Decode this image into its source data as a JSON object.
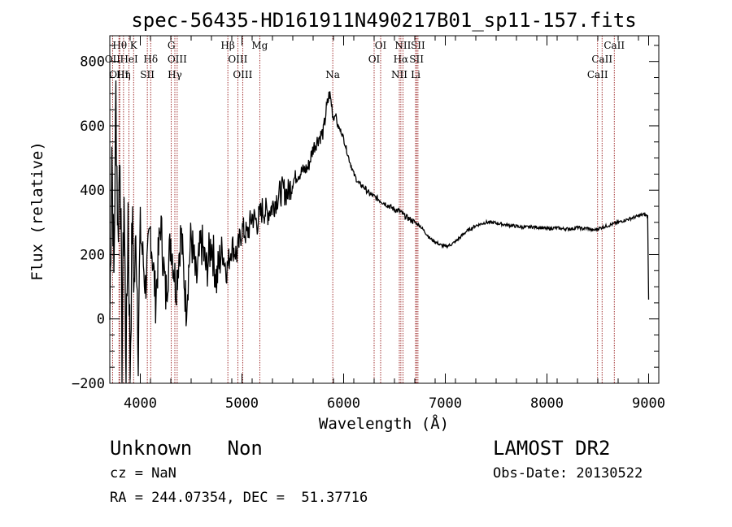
{
  "chart_data": {
    "type": "line",
    "title": "spec-56435-HD161911N490217B01_sp11-157.fits",
    "xlabel": "Wavelength (Å)",
    "ylabel": "Flux (relative)",
    "xlim": [
      3700,
      9100
    ],
    "ylim": [
      -200,
      880
    ],
    "x_ticks": [
      4000,
      5000,
      6000,
      7000,
      8000,
      9000
    ],
    "y_ticks": [
      -200,
      0,
      200,
      400,
      600,
      800
    ],
    "x_tick_labels": [
      "4000",
      "5000",
      "6000",
      "7000",
      "8000",
      "9000"
    ],
    "y_tick_labels": [
      "−200",
      "0",
      "200",
      "400",
      "600",
      "800"
    ],
    "spectrum": {
      "wavelength": [
        3700,
        3720,
        3740,
        3760,
        3780,
        3800,
        3820,
        3840,
        3860,
        3880,
        3900,
        3920,
        3940,
        3960,
        3980,
        4000,
        4050,
        4100,
        4150,
        4200,
        4250,
        4300,
        4350,
        4400,
        4450,
        4500,
        4550,
        4600,
        4650,
        4700,
        4750,
        4800,
        4850,
        4900,
        4950,
        5000,
        5050,
        5100,
        5150,
        5200,
        5250,
        5300,
        5350,
        5400,
        5450,
        5500,
        5550,
        5600,
        5650,
        5700,
        5750,
        5800,
        5830,
        5860,
        5880,
        5900,
        5920,
        5940,
        5960,
        5980,
        6000,
        6050,
        6100,
        6150,
        6200,
        6250,
        6300,
        6350,
        6400,
        6450,
        6500,
        6550,
        6600,
        6650,
        6700,
        6750,
        6800,
        6850,
        6900,
        6950,
        7000,
        7050,
        7100,
        7150,
        7200,
        7250,
        7300,
        7350,
        7400,
        7450,
        7500,
        7550,
        7600,
        7650,
        7700,
        7750,
        7800,
        7850,
        7900,
        7950,
        8000,
        8050,
        8100,
        8150,
        8200,
        8250,
        8300,
        8350,
        8400,
        8450,
        8500,
        8550,
        8600,
        8650,
        8700,
        8750,
        8800,
        8850,
        8900,
        8950,
        8990,
        9000
      ],
      "flux": [
        0,
        550,
        120,
        700,
        250,
        560,
        -100,
        400,
        -180,
        350,
        -150,
        300,
        100,
        260,
        -60,
        280,
        100,
        280,
        60,
        300,
        70,
        250,
        100,
        270,
        40,
        260,
        110,
        240,
        150,
        240,
        120,
        220,
        150,
        230,
        200,
        280,
        260,
        320,
        300,
        340,
        330,
        350,
        380,
        400,
        390,
        430,
        450,
        460,
        470,
        530,
        560,
        580,
        650,
        700,
        670,
        620,
        640,
        600,
        590,
        580,
        560,
        500,
        450,
        420,
        410,
        390,
        380,
        370,
        360,
        350,
        340,
        335,
        320,
        310,
        300,
        290,
        270,
        250,
        240,
        230,
        225,
        230,
        240,
        255,
        270,
        280,
        290,
        295,
        300,
        300,
        298,
        295,
        292,
        290,
        288,
        285,
        285,
        286,
        285,
        283,
        280,
        282,
        283,
        280,
        280,
        280,
        285,
        280,
        282,
        275,
        280,
        285,
        290,
        295,
        300,
        305,
        310,
        315,
        320,
        325,
        320,
        60
      ]
    },
    "lines": [
      {
        "label": "Hθ",
        "x": 3798,
        "row": 0
      },
      {
        "label": "K",
        "x": 3934,
        "row": 0
      },
      {
        "label": "G",
        "x": 4305,
        "row": 0
      },
      {
        "label": "Hβ",
        "x": 4861,
        "row": 0
      },
      {
        "label": "Mg",
        "x": 5175,
        "row": 0
      },
      {
        "label": "OI",
        "x": 6364,
        "row": 0
      },
      {
        "label": "NII",
        "x": 6583,
        "row": 0
      },
      {
        "label": "SII",
        "x": 6731,
        "row": 0
      },
      {
        "label": "CaII",
        "x": 8662,
        "row": 0
      },
      {
        "label": "OII",
        "x": 3727,
        "row": 1
      },
      {
        "label": "HeI",
        "x": 3889,
        "row": 1
      },
      {
        "label": "Hδ",
        "x": 4102,
        "row": 1
      },
      {
        "label": "OIII",
        "x": 4363,
        "row": 1
      },
      {
        "label": "OIII",
        "x": 4959,
        "row": 1
      },
      {
        "label": "OI",
        "x": 6300,
        "row": 1
      },
      {
        "label": "Hα",
        "x": 6563,
        "row": 1
      },
      {
        "label": "SII",
        "x": 6717,
        "row": 1
      },
      {
        "label": "CaII",
        "x": 8542,
        "row": 1
      },
      {
        "label": "OIII",
        "x": 3790,
        "row": 2
      },
      {
        "label": "Hη",
        "x": 3835,
        "row": 2
      },
      {
        "label": "SII",
        "x": 4069,
        "row": 2
      },
      {
        "label": "Hγ",
        "x": 4340,
        "row": 2
      },
      {
        "label": "OIII",
        "x": 5007,
        "row": 2
      },
      {
        "label": "Na",
        "x": 5893,
        "row": 2
      },
      {
        "label": "NII",
        "x": 6548,
        "row": 2
      },
      {
        "label": "Li",
        "x": 6708,
        "row": 2
      },
      {
        "label": "CaII",
        "x": 8498,
        "row": 2
      }
    ],
    "line_color": "#8b0000",
    "grid": false,
    "legend": "none"
  },
  "info": {
    "class_label": "Unknown   Non",
    "cz_label": "cz = NaN",
    "coords_label": "RA = 244.07354, DEC =  51.37716",
    "survey_label": "LAMOST DR2",
    "obs_date_label": "Obs-Date: 20130522"
  }
}
